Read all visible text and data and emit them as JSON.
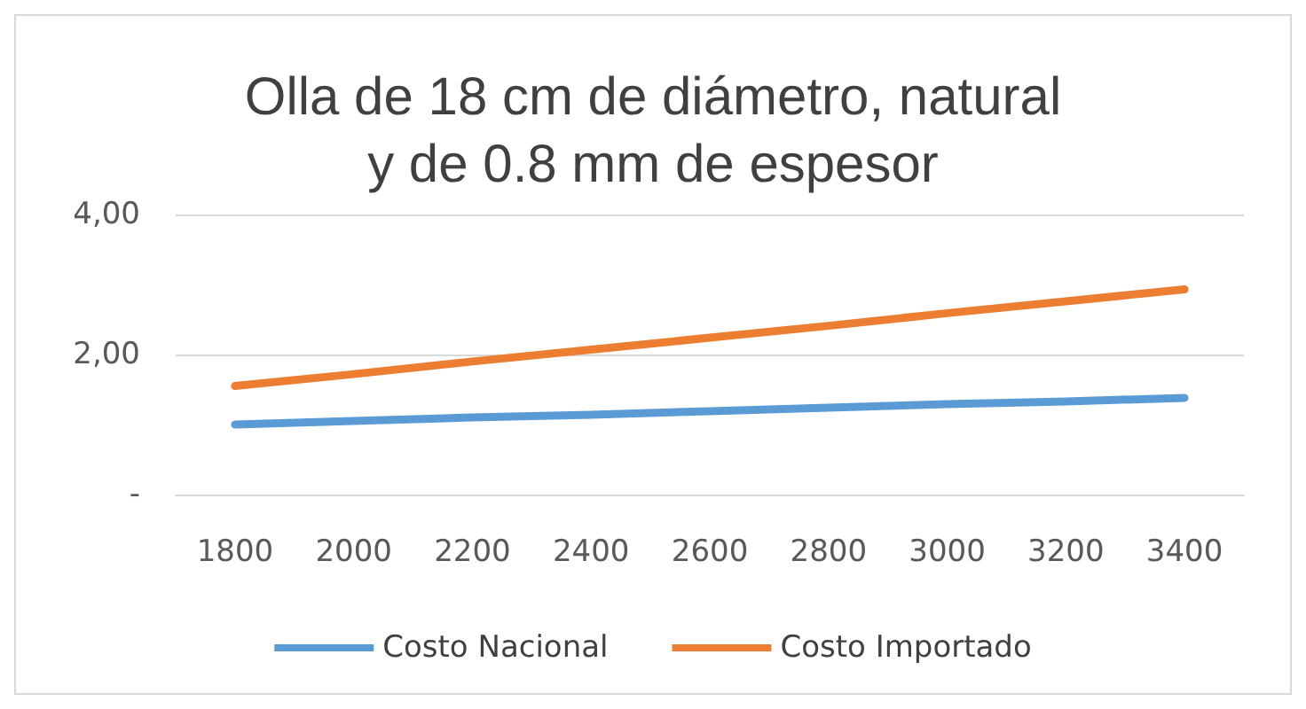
{
  "chart_data": {
    "type": "line",
    "title": "Olla de 18 cm de diámetro, natural\ny de 0.8 mm de espesor",
    "categories": [
      "1800",
      "2000",
      "2200",
      "2400",
      "2600",
      "2800",
      "3000",
      "3200",
      "3400"
    ],
    "series": [
      {
        "name": "Costo Nacional",
        "color": "#5b9bd5",
        "values": [
          1.0,
          1.05,
          1.1,
          1.14,
          1.19,
          1.24,
          1.29,
          1.33,
          1.38
        ]
      },
      {
        "name": "Costo Importado",
        "color": "#ed7d31",
        "values": [
          1.55,
          1.72,
          1.9,
          2.07,
          2.24,
          2.41,
          2.59,
          2.76,
          2.93
        ]
      }
    ],
    "ylim": [
      0,
      4
    ],
    "yticks": [
      {
        "value": 0,
        "label": "-"
      },
      {
        "value": 2,
        "label": "2,00"
      },
      {
        "value": 4,
        "label": "4,00"
      }
    ],
    "grid": "y",
    "legend": "bottom",
    "marker": "none",
    "line_style": "solid"
  }
}
